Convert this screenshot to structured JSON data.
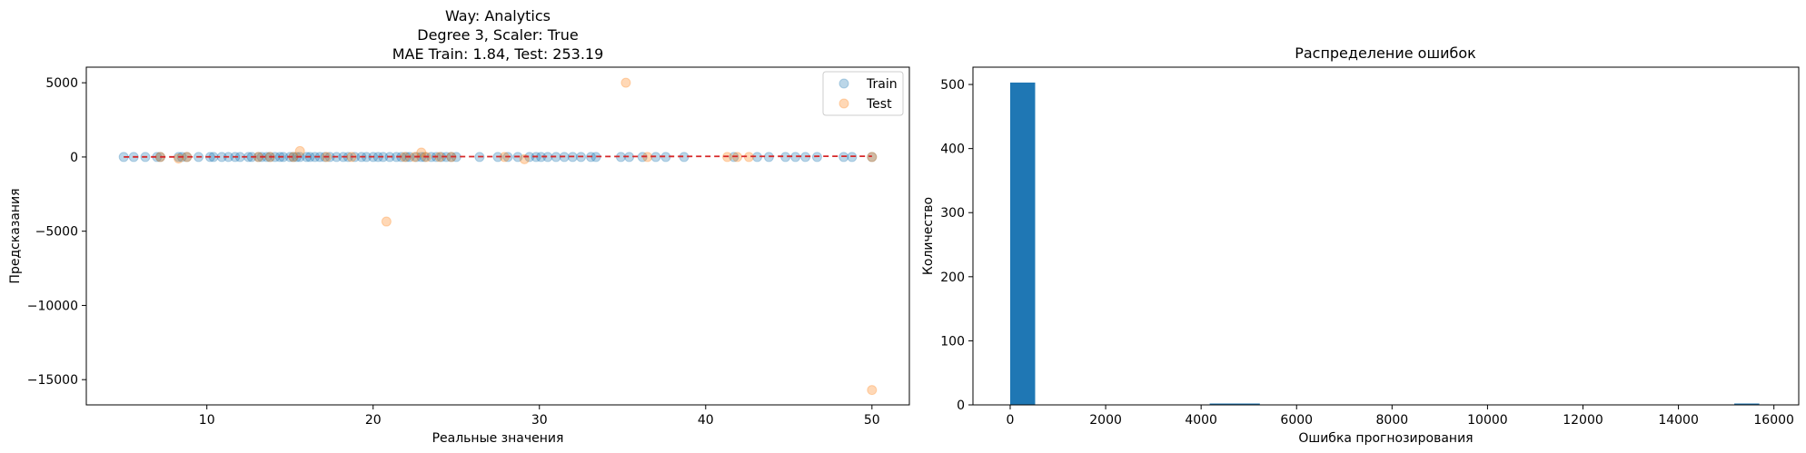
{
  "chart_data": [
    {
      "type": "scatter",
      "title_lines": [
        "Way: Analytics",
        "Degree 3, Scaler: True",
        "MAE Train: 1.84, Test: 253.19"
      ],
      "xlabel": "Реальные значения",
      "ylabel": "Предсказания",
      "xlim": [
        2.75,
        52.25
      ],
      "ylim": [
        -16700,
        6050
      ],
      "xticks": [
        10,
        20,
        30,
        40,
        50
      ],
      "yticks": [
        5000,
        0,
        -5000,
        -10000,
        -15000
      ],
      "ytick_labels": [
        "5000",
        "0",
        "−5000",
        "−10000",
        "−15000"
      ],
      "legend_position": "top-right",
      "reference_line": {
        "from": [
          5,
          5
        ],
        "to": [
          50,
          50
        ],
        "style": "dashed",
        "color": "#d62728"
      },
      "series": [
        {
          "name": "Train",
          "color": "#1f77b4",
          "x": [
            5.0,
            5.6,
            6.3,
            7.0,
            7.2,
            8.3,
            8.5,
            8.8,
            9.5,
            10.2,
            10.4,
            10.9,
            11.3,
            11.7,
            12.0,
            12.5,
            12.7,
            13.1,
            13.3,
            13.6,
            13.8,
            14.1,
            14.4,
            14.6,
            15.0,
            15.2,
            15.4,
            15.6,
            16.0,
            16.2,
            16.5,
            16.8,
            17.1,
            17.4,
            17.8,
            18.2,
            18.5,
            18.9,
            19.3,
            19.6,
            20.0,
            20.3,
            20.6,
            21.0,
            21.4,
            21.7,
            22.0,
            22.2,
            22.6,
            22.9,
            23.1,
            23.5,
            23.8,
            24.1,
            24.4,
            24.7,
            25.0,
            26.4,
            27.5,
            28.1,
            28.7,
            29.4,
            29.8,
            30.1,
            30.5,
            31.0,
            31.5,
            32.0,
            32.5,
            33.1,
            33.4,
            34.9,
            35.4,
            36.2,
            37.0,
            37.6,
            38.7,
            41.7,
            43.1,
            43.8,
            44.8,
            45.4,
            46.0,
            46.7,
            48.3,
            48.8,
            50.0
          ],
          "y": [
            0,
            0,
            0,
            0,
            0,
            0,
            0,
            0,
            0,
            0,
            0,
            0,
            0,
            0,
            0,
            0,
            0,
            0,
            0,
            0,
            0,
            0,
            0,
            0,
            0,
            0,
            0,
            0,
            0,
            0,
            0,
            0,
            0,
            0,
            0,
            0,
            0,
            0,
            0,
            0,
            0,
            0,
            0,
            0,
            0,
            0,
            0,
            0,
            0,
            0,
            0,
            0,
            0,
            0,
            0,
            0,
            0,
            0,
            0,
            0,
            0,
            0,
            0,
            0,
            0,
            0,
            0,
            0,
            0,
            0,
            0,
            0,
            0,
            0,
            0,
            0,
            0,
            0,
            0,
            0,
            0,
            0,
            0,
            0,
            0,
            0,
            0
          ]
        },
        {
          "name": "Test",
          "color": "#ff7f0e",
          "x": [
            7.2,
            8.3,
            8.8,
            13.1,
            13.8,
            15.2,
            15.6,
            17.2,
            18.7,
            20.8,
            21.9,
            22.5,
            22.9,
            23.2,
            24.0,
            24.7,
            27.9,
            29.1,
            35.2,
            36.5,
            41.3,
            41.9,
            42.6,
            50.0,
            50.0
          ],
          "y": [
            0,
            -100,
            0,
            0,
            0,
            0,
            400,
            0,
            0,
            -4350,
            0,
            0,
            300,
            0,
            0,
            0,
            0,
            -150,
            5000,
            0,
            0,
            0,
            0,
            -15700,
            0
          ]
        }
      ]
    },
    {
      "type": "bar",
      "title": "Распределение ошибок",
      "xlabel": "Ошибка прогнозирования",
      "ylabel": "Количество",
      "xlim": [
        -780,
        16520
      ],
      "ylim": [
        0,
        527
      ],
      "xticks": [
        0,
        2000,
        4000,
        6000,
        8000,
        10000,
        12000,
        14000,
        16000
      ],
      "yticks": [
        0,
        100,
        200,
        300,
        400,
        500
      ],
      "color": "#1f77b4",
      "bins": [
        {
          "start": 0,
          "end": 523,
          "count": 503
        },
        {
          "start": 4180,
          "end": 5230,
          "count": 1
        },
        {
          "start": 15170,
          "end": 15693,
          "count": 1
        }
      ]
    }
  ]
}
